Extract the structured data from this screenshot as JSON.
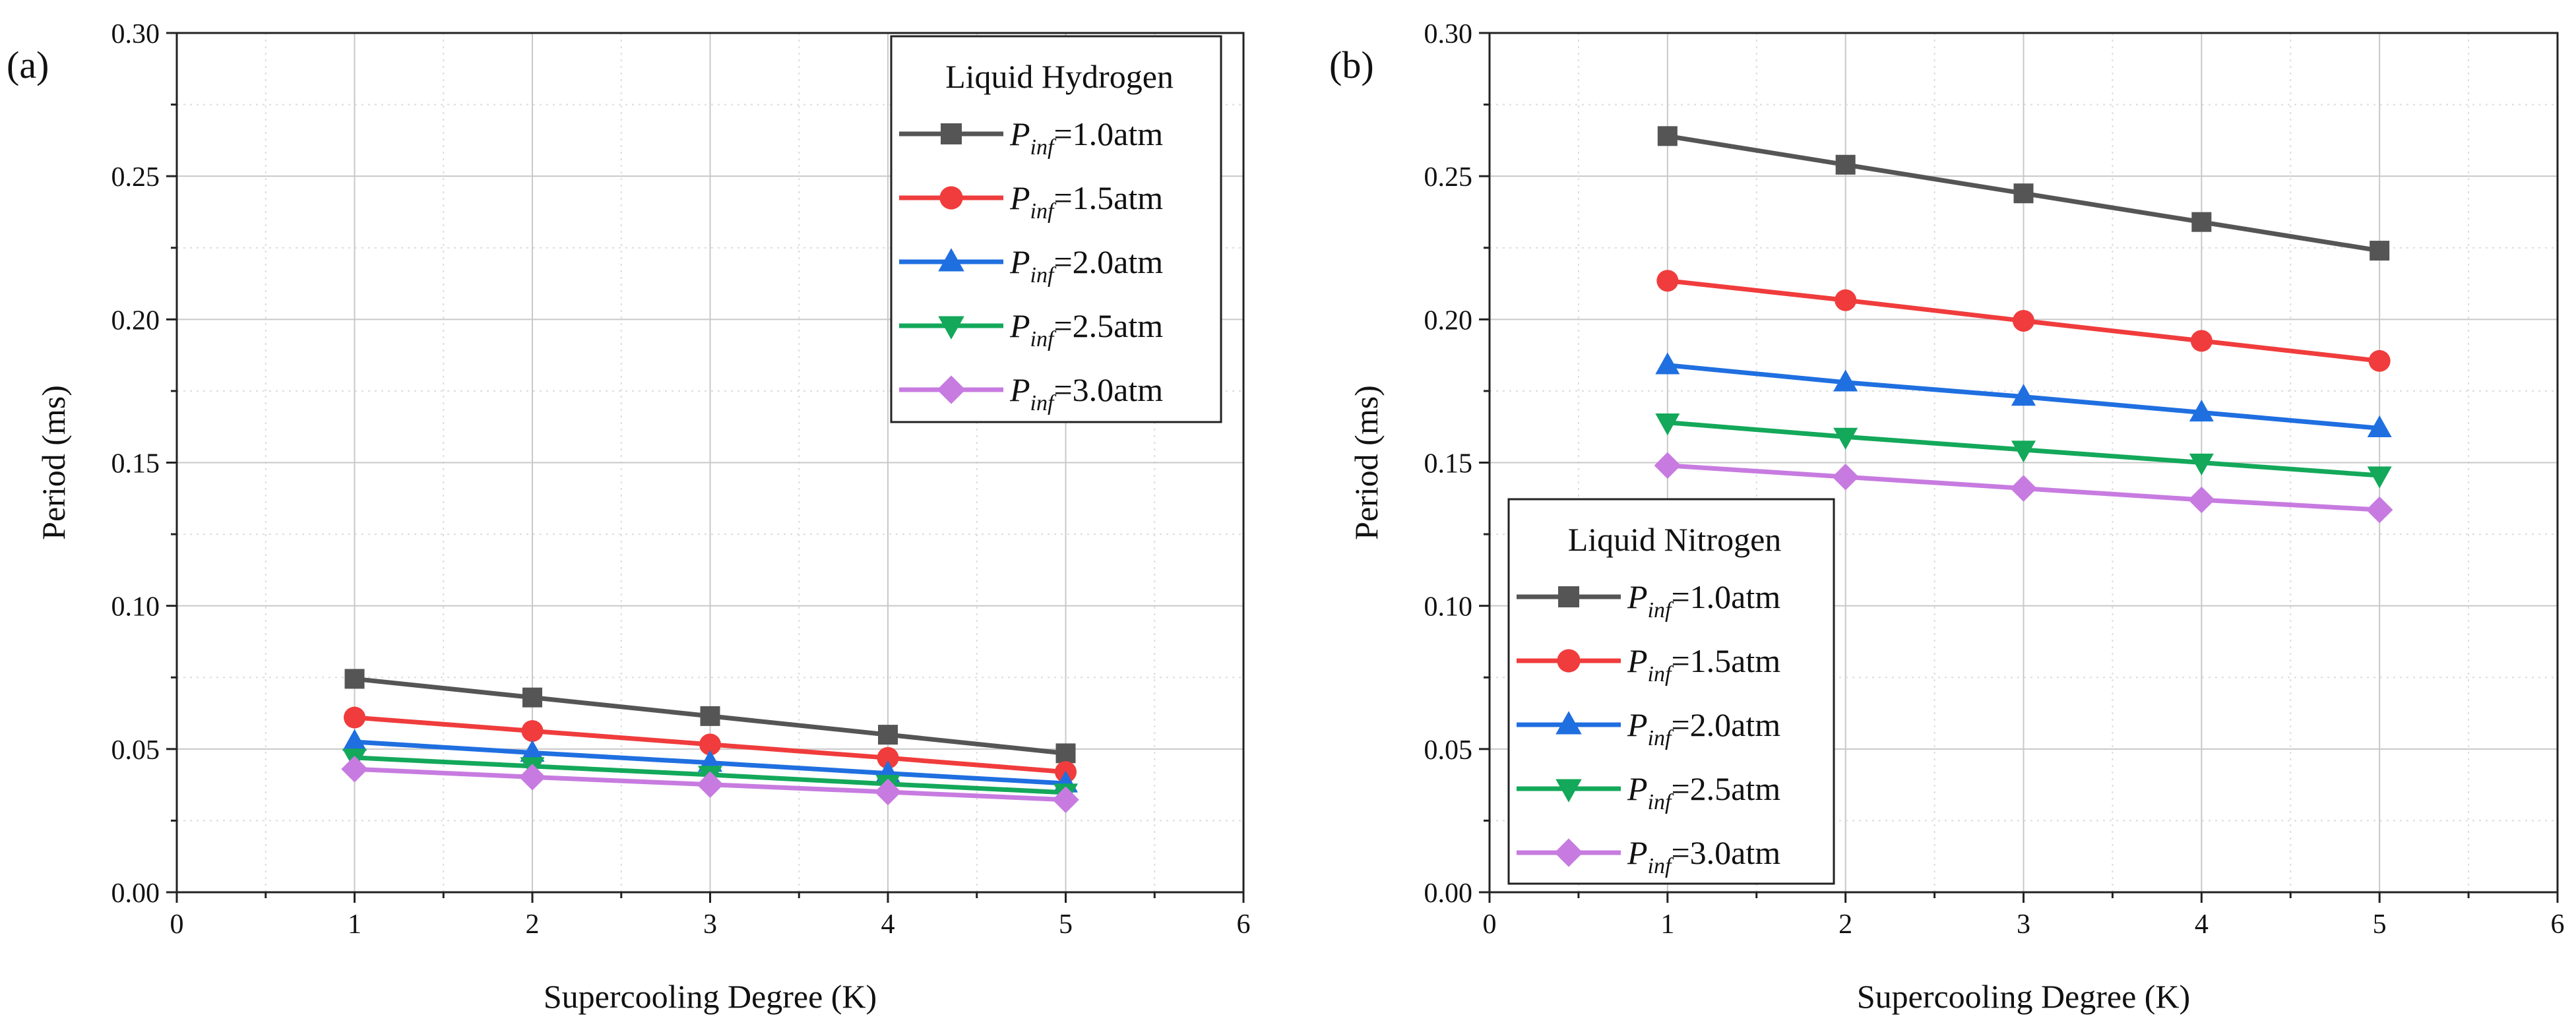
{
  "figure_title": "",
  "chart_data": [
    {
      "type": "line",
      "panel_label": "(a)",
      "title": "",
      "xlabel": "Supercooling Degree (K)",
      "ylabel": "Period (ms)",
      "xlim": [
        0,
        6
      ],
      "ylim": [
        0.0,
        0.3
      ],
      "xticks": [
        "0",
        "1",
        "2",
        "3",
        "4",
        "5",
        "6"
      ],
      "yticks": [
        "0.00",
        "0.05",
        "0.10",
        "0.15",
        "0.20",
        "0.25",
        "0.30"
      ],
      "grid": true,
      "legend_position": "top-right",
      "legend_title": "Liquid Hydrogen",
      "x": [
        1,
        2,
        3,
        4,
        5
      ],
      "series": [
        {
          "name": "Pinf=1.0atm",
          "symbol": "P",
          "subscript": "inf",
          "suffix": "=1.0atm",
          "marker": "square",
          "color": "#555555",
          "values": [
            0.0745,
            0.068,
            0.0615,
            0.055,
            0.0485
          ]
        },
        {
          "name": "Pinf=1.5atm",
          "symbol": "P",
          "subscript": "inf",
          "suffix": "=1.5atm",
          "marker": "circle",
          "color": "#f03c3c",
          "values": [
            0.061,
            0.0563,
            0.0516,
            0.0469,
            0.042
          ]
        },
        {
          "name": "Pinf=2.0atm",
          "symbol": "P",
          "subscript": "inf",
          "suffix": "=2.0atm",
          "marker": "triangle-up",
          "color": "#1f6fe0",
          "values": [
            0.0525,
            0.0487,
            0.0452,
            0.0415,
            0.038
          ]
        },
        {
          "name": "Pinf=2.5atm",
          "symbol": "P",
          "subscript": "inf",
          "suffix": "=2.5atm",
          "marker": "triangle-down",
          "color": "#13a85a",
          "values": [
            0.047,
            0.044,
            0.041,
            0.0378,
            0.0348
          ]
        },
        {
          "name": "Pinf=3.0atm",
          "symbol": "P",
          "subscript": "inf",
          "suffix": "=3.0atm",
          "marker": "diamond",
          "color": "#c77be0",
          "values": [
            0.043,
            0.0402,
            0.0376,
            0.035,
            0.0323
          ]
        }
      ]
    },
    {
      "type": "line",
      "panel_label": "(b)",
      "title": "",
      "xlabel": "Supercooling Degree (K)",
      "ylabel": "Period (ms)",
      "xlim": [
        0,
        6
      ],
      "ylim": [
        0.0,
        0.3
      ],
      "xticks": [
        "0",
        "1",
        "2",
        "3",
        "4",
        "5",
        "6"
      ],
      "yticks": [
        "0.00",
        "0.05",
        "0.10",
        "0.15",
        "0.20",
        "0.25",
        "0.30"
      ],
      "grid": true,
      "legend_position": "bottom-left",
      "legend_title": "Liquid Nitrogen",
      "x": [
        1,
        2,
        3,
        4,
        5
      ],
      "series": [
        {
          "name": "Pinf=1.0atm",
          "symbol": "P",
          "subscript": "inf",
          "suffix": "=1.0atm",
          "marker": "square",
          "color": "#555555",
          "values": [
            0.264,
            0.254,
            0.244,
            0.234,
            0.224
          ]
        },
        {
          "name": "Pinf=1.5atm",
          "symbol": "P",
          "subscript": "inf",
          "suffix": "=1.5atm",
          "marker": "circle",
          "color": "#f03c3c",
          "values": [
            0.2135,
            0.2067,
            0.1995,
            0.1925,
            0.1855
          ]
        },
        {
          "name": "Pinf=2.0atm",
          "symbol": "P",
          "subscript": "inf",
          "suffix": "=2.0atm",
          "marker": "triangle-up",
          "color": "#1f6fe0",
          "values": [
            0.184,
            0.178,
            0.173,
            0.1675,
            0.162
          ]
        },
        {
          "name": "Pinf=2.5atm",
          "symbol": "P",
          "subscript": "inf",
          "suffix": "=2.5atm",
          "marker": "triangle-down",
          "color": "#13a85a",
          "values": [
            0.164,
            0.159,
            0.1545,
            0.15,
            0.1455
          ]
        },
        {
          "name": "Pinf=3.0atm",
          "symbol": "P",
          "subscript": "inf",
          "suffix": "=3.0atm",
          "marker": "diamond",
          "color": "#c77be0",
          "values": [
            0.149,
            0.145,
            0.141,
            0.137,
            0.1335
          ]
        }
      ]
    }
  ]
}
